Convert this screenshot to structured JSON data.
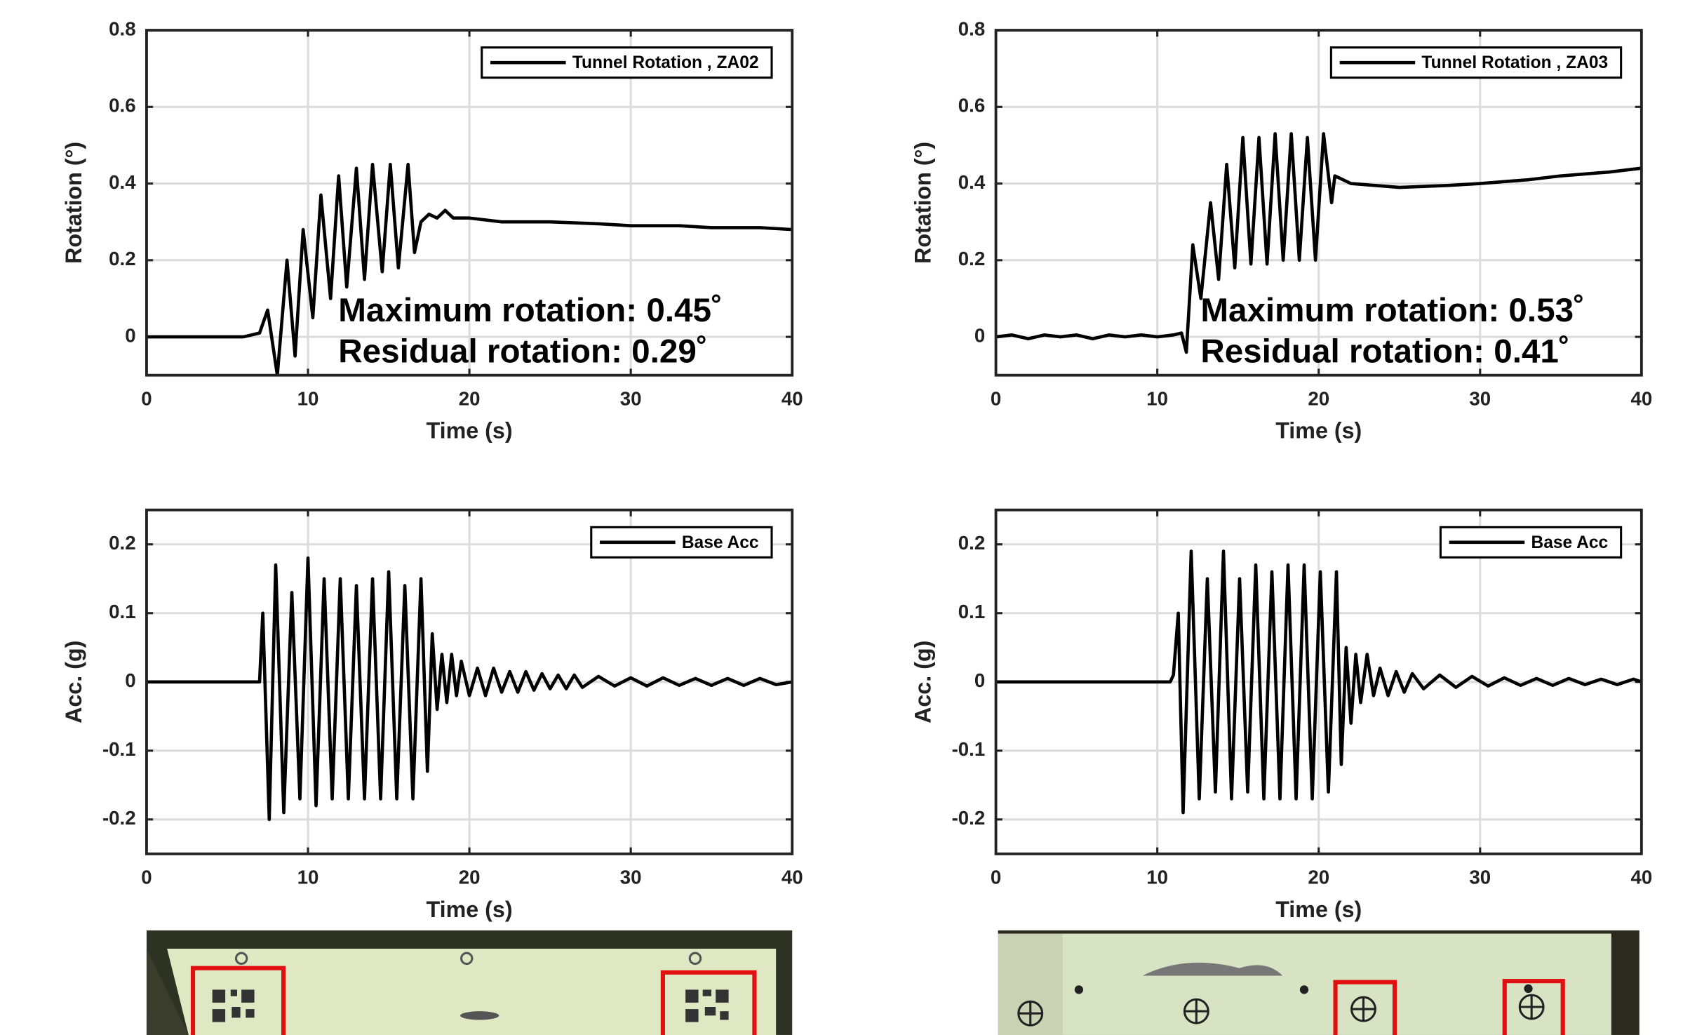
{
  "chart_data": [
    {
      "type": "line",
      "xlabel": "Time (s)",
      "ylabel": "Rotation (°)",
      "xlim": [
        0,
        40
      ],
      "ylim": [
        -0.1,
        0.8
      ],
      "xticks": [
        0,
        10,
        20,
        30,
        40
      ],
      "yticks": [
        0,
        0.2,
        0.4,
        0.6,
        0.8
      ],
      "grid": true,
      "legend": "upper right",
      "annotations": [
        "Maximum rotation: 0.45˚",
        "Residual rotation: 0.29˚"
      ],
      "x": [
        0,
        6,
        7,
        7.5,
        8.1,
        8.7,
        9.2,
        9.7,
        10.3,
        10.8,
        11.4,
        11.9,
        12.4,
        13.0,
        13.5,
        14.0,
        14.6,
        15.1,
        15.6,
        16.2,
        16.6,
        17.0,
        17.5,
        18.0,
        18.5,
        19.0,
        20,
        22,
        25,
        28,
        30,
        33,
        35,
        38,
        40
      ],
      "series": [
        {
          "name": "Tunnel Rotation , ZA02",
          "color": "#000000",
          "values": [
            0,
            0,
            0.01,
            0.07,
            -0.1,
            0.2,
            -0.05,
            0.28,
            0.05,
            0.37,
            0.1,
            0.42,
            0.13,
            0.44,
            0.15,
            0.45,
            0.17,
            0.45,
            0.18,
            0.45,
            0.22,
            0.3,
            0.32,
            0.31,
            0.33,
            0.31,
            0.31,
            0.3,
            0.3,
            0.295,
            0.29,
            0.29,
            0.285,
            0.285,
            0.28
          ]
        }
      ]
    },
    {
      "type": "line",
      "xlabel": "Time (s)",
      "ylabel": "Rotation (°)",
      "xlim": [
        0,
        40
      ],
      "ylim": [
        -0.1,
        0.8
      ],
      "xticks": [
        0,
        10,
        20,
        30,
        40
      ],
      "yticks": [
        0,
        0.2,
        0.4,
        0.6,
        0.8
      ],
      "grid": true,
      "legend": "upper right",
      "annotations": [
        "Maximum rotation: 0.53˚",
        "Residual rotation: 0.41˚"
      ],
      "x": [
        0,
        1,
        2,
        3,
        4,
        5,
        6,
        7,
        8,
        9,
        10,
        11,
        11.5,
        11.8,
        12.2,
        12.7,
        13.3,
        13.8,
        14.3,
        14.8,
        15.3,
        15.8,
        16.3,
        16.8,
        17.3,
        17.8,
        18.3,
        18.8,
        19.3,
        19.8,
        20.3,
        20.8,
        21.0,
        22,
        25,
        28,
        30,
        33,
        35,
        38,
        40
      ],
      "series": [
        {
          "name": "Tunnel Rotation , ZA03",
          "color": "#000000",
          "values": [
            0,
            0.005,
            -0.005,
            0.005,
            0,
            0.005,
            -0.005,
            0.005,
            0,
            0.005,
            0,
            0.005,
            0.01,
            -0.04,
            0.24,
            0.1,
            0.35,
            0.15,
            0.45,
            0.18,
            0.52,
            0.19,
            0.52,
            0.19,
            0.53,
            0.2,
            0.53,
            0.2,
            0.52,
            0.2,
            0.53,
            0.35,
            0.42,
            0.4,
            0.39,
            0.395,
            0.4,
            0.41,
            0.42,
            0.43,
            0.44
          ]
        }
      ]
    },
    {
      "type": "line",
      "xlabel": "Time (s)",
      "ylabel": "Acc. (g)",
      "xlim": [
        0,
        40
      ],
      "ylim": [
        -0.25,
        0.25
      ],
      "xticks": [
        0,
        10,
        20,
        30,
        40
      ],
      "yticks": [
        -0.2,
        -0.1,
        0,
        0.1,
        0.2
      ],
      "grid": true,
      "legend": "upper right",
      "x": [
        0,
        7.0,
        7.2,
        7.6,
        8.0,
        8.5,
        9.0,
        9.5,
        10.0,
        10.5,
        11.0,
        11.5,
        12.0,
        12.5,
        13.0,
        13.5,
        14.0,
        14.5,
        15.0,
        15.5,
        16.0,
        16.5,
        17.0,
        17.4,
        17.7,
        18.0,
        18.3,
        18.6,
        18.9,
        19.2,
        19.5,
        20,
        20.5,
        21,
        21.5,
        22,
        22.5,
        23,
        23.5,
        24,
        24.5,
        25,
        25.5,
        26,
        26.5,
        27,
        28,
        29,
        30,
        31,
        32,
        33,
        34,
        35,
        36,
        37,
        38,
        39,
        40
      ],
      "series": [
        {
          "name": "Base Acc",
          "color": "#000000",
          "values": [
            0,
            0,
            0.1,
            -0.2,
            0.17,
            -0.19,
            0.13,
            -0.17,
            0.18,
            -0.18,
            0.15,
            -0.17,
            0.15,
            -0.17,
            0.14,
            -0.17,
            0.15,
            -0.17,
            0.16,
            -0.17,
            0.14,
            -0.17,
            0.15,
            -0.13,
            0.07,
            -0.04,
            0.04,
            -0.03,
            0.04,
            -0.02,
            0.03,
            -0.02,
            0.02,
            -0.02,
            0.02,
            -0.015,
            0.015,
            -0.015,
            0.015,
            -0.012,
            0.012,
            -0.01,
            0.01,
            -0.01,
            0.01,
            -0.008,
            0.008,
            -0.006,
            0.006,
            -0.006,
            0.006,
            -0.005,
            0.005,
            -0.005,
            0.005,
            -0.005,
            0.005,
            -0.004,
            0
          ]
        }
      ]
    },
    {
      "type": "line",
      "xlabel": "Time (s)",
      "ylabel": "Acc. (g)",
      "xlim": [
        0,
        40
      ],
      "ylim": [
        -0.25,
        0.25
      ],
      "xticks": [
        0,
        10,
        20,
        30,
        40
      ],
      "yticks": [
        -0.2,
        -0.1,
        0,
        0.1,
        0.2
      ],
      "grid": true,
      "legend": "upper right",
      "x": [
        0,
        10.8,
        11.0,
        11.3,
        11.6,
        12.1,
        12.6,
        13.1,
        13.6,
        14.1,
        14.6,
        15.1,
        15.6,
        16.1,
        16.6,
        17.1,
        17.6,
        18.1,
        18.6,
        19.1,
        19.6,
        20.1,
        20.6,
        21.1,
        21.4,
        21.7,
        22.0,
        22.3,
        22.6,
        23,
        23.4,
        23.8,
        24.3,
        24.8,
        25.3,
        25.8,
        26.5,
        27.5,
        28.5,
        29.5,
        30.5,
        31.5,
        32.5,
        33.5,
        34.5,
        35.5,
        36.5,
        37.5,
        38.5,
        39.5,
        40
      ],
      "series": [
        {
          "name": "Base Acc",
          "color": "#000000",
          "values": [
            0,
            0,
            0.01,
            0.1,
            -0.19,
            0.19,
            -0.17,
            0.15,
            -0.16,
            0.19,
            -0.17,
            0.15,
            -0.16,
            0.17,
            -0.17,
            0.16,
            -0.17,
            0.17,
            -0.17,
            0.17,
            -0.17,
            0.16,
            -0.16,
            0.16,
            -0.12,
            0.05,
            -0.06,
            0.04,
            -0.03,
            0.04,
            -0.02,
            0.02,
            -0.02,
            0.015,
            -0.015,
            0.012,
            -0.01,
            0.01,
            -0.008,
            0.008,
            -0.006,
            0.006,
            -0.005,
            0.005,
            -0.005,
            0.005,
            -0.004,
            0.004,
            -0.004,
            0.004,
            0
          ]
        }
      ]
    }
  ]
}
